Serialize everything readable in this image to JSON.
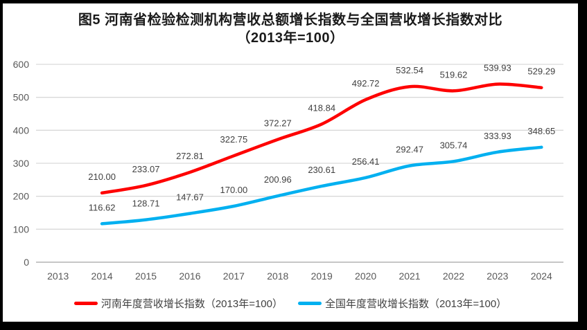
{
  "title": {
    "line1": "图5  河南省检验检测机构营收总额增长指数与全国营收增长指数对比",
    "line2": "（2013年=100）"
  },
  "colors": {
    "henan_line": "#FE0000",
    "national_line": "#00B0F0",
    "gridline": "#D9D9D9",
    "axis_line": "#C6C6C6",
    "axis_text": "#595959",
    "data_label_text": "#404040",
    "frame_border": "#000000"
  },
  "chart_data": {
    "type": "line",
    "categories": [
      "2013",
      "2014",
      "2015",
      "2016",
      "2017",
      "2018",
      "2019",
      "2020",
      "2021",
      "2022",
      "2023",
      "2024"
    ],
    "series": [
      {
        "name": "河南年度营收增长指数（2013年=100）",
        "color": "#FE0000",
        "values": [
          null,
          210.0,
          233.07,
          272.81,
          322.75,
          372.27,
          418.84,
          492.72,
          532.54,
          519.62,
          539.93,
          529.29
        ]
      },
      {
        "name": "全国年度营收增长指数（2013年=100）",
        "color": "#00B0F0",
        "values": [
          null,
          116.62,
          128.71,
          147.67,
          170.0,
          200.96,
          230.61,
          256.41,
          292.47,
          305.74,
          333.93,
          348.65
        ]
      }
    ],
    "title": "图5 河南省检验检测机构营收总额增长指数与全国营收增长指数对比（2013年=100）",
    "xlabel": "",
    "ylabel": "",
    "ylim": [
      0,
      600
    ],
    "ytick_interval": 100,
    "grid": "horizontal",
    "legend_position": "bottom",
    "data_labels": true,
    "data_label_decimals": 2
  }
}
